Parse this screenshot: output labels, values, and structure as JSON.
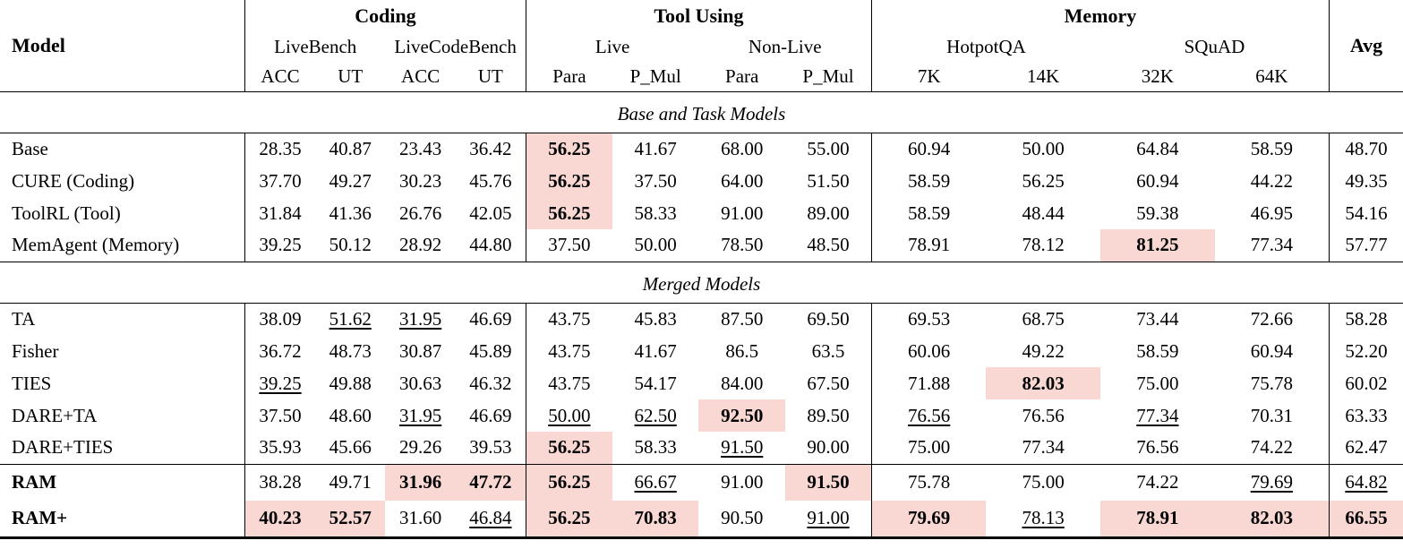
{
  "colors": {
    "highlight": "#f9d7d3"
  },
  "table": {
    "header": {
      "model": "Model",
      "avg": "Avg",
      "groups": [
        {
          "label": "Coding",
          "subs": [
            {
              "label": "LiveBench",
              "cols": [
                "ACC",
                "UT"
              ]
            },
            {
              "label": "LiveCodeBench",
              "cols": [
                "ACC",
                "UT"
              ]
            }
          ]
        },
        {
          "label": "Tool Using",
          "subs": [
            {
              "label": "Live",
              "cols": [
                "Para",
                "P_Mul"
              ]
            },
            {
              "label": "Non-Live",
              "cols": [
                "Para",
                "P_Mul"
              ]
            }
          ]
        },
        {
          "label": "Memory",
          "subs": [
            {
              "label": "HotpotQA",
              "cols": [
                "7K",
                "14K"
              ]
            },
            {
              "label": "SQuAD",
              "cols": [
                "32K",
                "64K"
              ]
            }
          ]
        }
      ]
    },
    "sections": [
      {
        "title": "Base and Task Models",
        "rows": [
          {
            "model": "Base",
            "bold": false,
            "cells": [
              [
                "28.35",
                ""
              ],
              [
                "40.87",
                ""
              ],
              [
                "23.43",
                ""
              ],
              [
                "36.42",
                ""
              ],
              [
                "56.25",
                "bh"
              ],
              [
                "41.67",
                ""
              ],
              [
                "68.00",
                ""
              ],
              [
                "55.00",
                ""
              ],
              [
                "60.94",
                ""
              ],
              [
                "50.00",
                ""
              ],
              [
                "64.84",
                ""
              ],
              [
                "58.59",
                ""
              ],
              [
                "48.70",
                ""
              ]
            ]
          },
          {
            "model": "CURE (Coding)",
            "bold": false,
            "cells": [
              [
                "37.70",
                ""
              ],
              [
                "49.27",
                ""
              ],
              [
                "30.23",
                ""
              ],
              [
                "45.76",
                ""
              ],
              [
                "56.25",
                "bh"
              ],
              [
                "37.50",
                ""
              ],
              [
                "64.00",
                ""
              ],
              [
                "51.50",
                ""
              ],
              [
                "58.59",
                ""
              ],
              [
                "56.25",
                ""
              ],
              [
                "60.94",
                ""
              ],
              [
                "44.22",
                ""
              ],
              [
                "49.35",
                ""
              ]
            ]
          },
          {
            "model": "ToolRL (Tool)",
            "bold": false,
            "cells": [
              [
                "31.84",
                ""
              ],
              [
                "41.36",
                ""
              ],
              [
                "26.76",
                ""
              ],
              [
                "42.05",
                ""
              ],
              [
                "56.25",
                "bh"
              ],
              [
                "58.33",
                ""
              ],
              [
                "91.00",
                ""
              ],
              [
                "89.00",
                ""
              ],
              [
                "58.59",
                ""
              ],
              [
                "48.44",
                ""
              ],
              [
                "59.38",
                ""
              ],
              [
                "46.95",
                ""
              ],
              [
                "54.16",
                ""
              ]
            ]
          },
          {
            "model": "MemAgent (Memory)",
            "bold": false,
            "cells": [
              [
                "39.25",
                ""
              ],
              [
                "50.12",
                ""
              ],
              [
                "28.92",
                ""
              ],
              [
                "44.80",
                ""
              ],
              [
                "37.50",
                ""
              ],
              [
                "50.00",
                ""
              ],
              [
                "78.50",
                ""
              ],
              [
                "48.50",
                ""
              ],
              [
                "78.91",
                ""
              ],
              [
                "78.12",
                ""
              ],
              [
                "81.25",
                "bh"
              ],
              [
                "77.34",
                ""
              ],
              [
                "57.77",
                ""
              ]
            ]
          }
        ]
      },
      {
        "title": "Merged Models",
        "rows": [
          {
            "model": "TA",
            "bold": false,
            "cells": [
              [
                "38.09",
                ""
              ],
              [
                "51.62",
                "u"
              ],
              [
                "31.95",
                "u"
              ],
              [
                "46.69",
                ""
              ],
              [
                "43.75",
                ""
              ],
              [
                "45.83",
                ""
              ],
              [
                "87.50",
                ""
              ],
              [
                "69.50",
                ""
              ],
              [
                "69.53",
                ""
              ],
              [
                "68.75",
                ""
              ],
              [
                "73.44",
                ""
              ],
              [
                "72.66",
                ""
              ],
              [
                "58.28",
                ""
              ]
            ]
          },
          {
            "model": "Fisher",
            "bold": false,
            "cells": [
              [
                "36.72",
                ""
              ],
              [
                "48.73",
                ""
              ],
              [
                "30.87",
                ""
              ],
              [
                "45.89",
                ""
              ],
              [
                "43.75",
                ""
              ],
              [
                "41.67",
                ""
              ],
              [
                "86.5",
                ""
              ],
              [
                "63.5",
                ""
              ],
              [
                "60.06",
                ""
              ],
              [
                "49.22",
                ""
              ],
              [
                "58.59",
                ""
              ],
              [
                "60.94",
                ""
              ],
              [
                "52.20",
                ""
              ]
            ]
          },
          {
            "model": "TIES",
            "bold": false,
            "cells": [
              [
                "39.25",
                "u"
              ],
              [
                "49.88",
                ""
              ],
              [
                "30.63",
                ""
              ],
              [
                "46.32",
                ""
              ],
              [
                "43.75",
                ""
              ],
              [
                "54.17",
                ""
              ],
              [
                "84.00",
                ""
              ],
              [
                "67.50",
                ""
              ],
              [
                "71.88",
                ""
              ],
              [
                "82.03",
                "bh"
              ],
              [
                "75.00",
                ""
              ],
              [
                "75.78",
                ""
              ],
              [
                "60.02",
                ""
              ]
            ]
          },
          {
            "model": "DARE+TA",
            "bold": false,
            "cells": [
              [
                "37.50",
                ""
              ],
              [
                "48.60",
                ""
              ],
              [
                "31.95",
                "u"
              ],
              [
                "46.69",
                ""
              ],
              [
                "50.00",
                "u"
              ],
              [
                "62.50",
                "u"
              ],
              [
                "92.50",
                "bh"
              ],
              [
                "89.50",
                ""
              ],
              [
                "76.56",
                "u"
              ],
              [
                "76.56",
                ""
              ],
              [
                "77.34",
                "u"
              ],
              [
                "70.31",
                ""
              ],
              [
                "63.33",
                ""
              ]
            ]
          },
          {
            "model": "DARE+TIES",
            "bold": false,
            "cells": [
              [
                "35.93",
                ""
              ],
              [
                "45.66",
                ""
              ],
              [
                "29.26",
                ""
              ],
              [
                "39.53",
                ""
              ],
              [
                "56.25",
                "bh"
              ],
              [
                "58.33",
                ""
              ],
              [
                "91.50",
                "u"
              ],
              [
                "90.00",
                ""
              ],
              [
                "75.00",
                ""
              ],
              [
                "77.34",
                ""
              ],
              [
                "76.56",
                ""
              ],
              [
                "74.22",
                ""
              ],
              [
                "62.47",
                ""
              ]
            ]
          }
        ]
      },
      {
        "title": "",
        "rows": [
          {
            "model": "RAM",
            "bold": true,
            "cells": [
              [
                "38.28",
                ""
              ],
              [
                "49.71",
                ""
              ],
              [
                "31.96",
                "bh"
              ],
              [
                "47.72",
                "bh"
              ],
              [
                "56.25",
                "bh"
              ],
              [
                "66.67",
                "u"
              ],
              [
                "91.00",
                ""
              ],
              [
                "91.50",
                "bh"
              ],
              [
                "75.78",
                ""
              ],
              [
                "75.00",
                ""
              ],
              [
                "74.22",
                ""
              ],
              [
                "79.69",
                "u"
              ],
              [
                "64.82",
                "u"
              ]
            ]
          },
          {
            "model": "RAM+",
            "bold": true,
            "cells": [
              [
                "40.23",
                "bh"
              ],
              [
                "52.57",
                "bh"
              ],
              [
                "31.60",
                ""
              ],
              [
                "46.84",
                "u"
              ],
              [
                "56.25",
                "bh"
              ],
              [
                "70.83",
                "bh"
              ],
              [
                "90.50",
                ""
              ],
              [
                "91.00",
                "u"
              ],
              [
                "79.69",
                "bh"
              ],
              [
                "78.13",
                "u"
              ],
              [
                "78.91",
                "bh"
              ],
              [
                "82.03",
                "bh"
              ],
              [
                "66.55",
                "bh"
              ]
            ]
          }
        ]
      }
    ]
  }
}
